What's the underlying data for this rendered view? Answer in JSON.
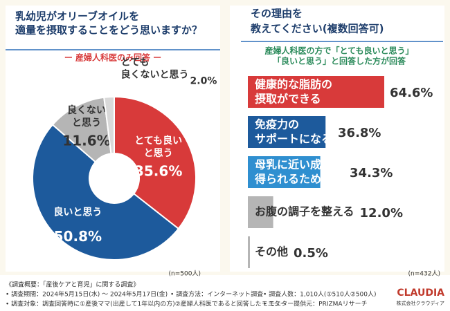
{
  "chart_data": [
    {
      "type": "pie",
      "title": [
        "乳幼児がオリーブオイルを",
        "適量を摂取することをどう思いますか？"
      ],
      "subtitle": "ー 産婦人科医のみ回答 ー",
      "categories": [
        "とても良いと思う",
        "良いと思う",
        "良くないと思う",
        "とても良くないと思う"
      ],
      "values": [
        35.6,
        50.8,
        11.6,
        2.0
      ],
      "value_labels": [
        "35.6%",
        "50.8%",
        "11.6%",
        "2.0%"
      ],
      "colors": [
        "#d83a3a",
        "#1d5a9c",
        "#b5b5b5",
        "#d9d9d9"
      ],
      "note": "(n=500人)"
    },
    {
      "type": "bar",
      "title": [
        "その理由を",
        "教えてください(複数回答可)"
      ],
      "subtitle": [
        "産婦人科医の方で「とても良いと思う」",
        "「良いと思う」と回答した方が回答"
      ],
      "categories": [
        "健康的な脂肪の摂取ができる",
        "免疫力のサポートになる",
        "母乳に近い成分が得られるため",
        "お腹の調子を整える",
        "その他"
      ],
      "values": [
        64.6,
        36.8,
        34.3,
        12.0,
        0.5
      ],
      "value_labels": [
        "64.6%",
        "36.8%",
        "34.3%",
        "12.0%",
        "0.5%"
      ],
      "colors": [
        "#d83a3a",
        "#1d5a9c",
        "#2f8fd0",
        "#b5b5b5",
        "#b5b5b5"
      ],
      "note": "(n=432人)"
    }
  ],
  "footer": {
    "heading": "《調査概要：「産後ケアと育児」に関する調査》",
    "items": [
      "• 調査期間：2024年5月15日(水) ～ 2024年5月17日(金)",
      "• 調査方法：インターネット調査",
      "• 調査人数：1,010人(①510人②500人)",
      "• 調査対象：調査回答時に①産後ママ(出産して1年以内の方)②産婦人科医であると回答したモニター",
      "• モニター提供元：PRIZMAリサーチ"
    ]
  },
  "logo": {
    "name": "CLAUDIA",
    "company": "株式会社クラウディア"
  }
}
